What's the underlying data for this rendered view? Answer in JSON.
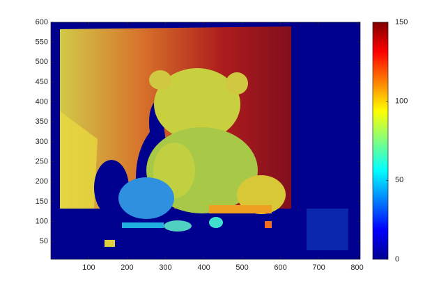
{
  "chart_data": {
    "type": "image",
    "colormap": "jet",
    "xlim": [
      1,
      808
    ],
    "ylim": [
      5,
      600
    ],
    "xticks": [
      100,
      200,
      300,
      400,
      500,
      600,
      700,
      800
    ],
    "yticks": [
      50,
      100,
      150,
      200,
      250,
      300,
      350,
      400,
      450,
      500,
      550,
      600
    ],
    "clim": [
      0,
      150
    ],
    "cticks": [
      0,
      50,
      100,
      150
    ]
  }
}
